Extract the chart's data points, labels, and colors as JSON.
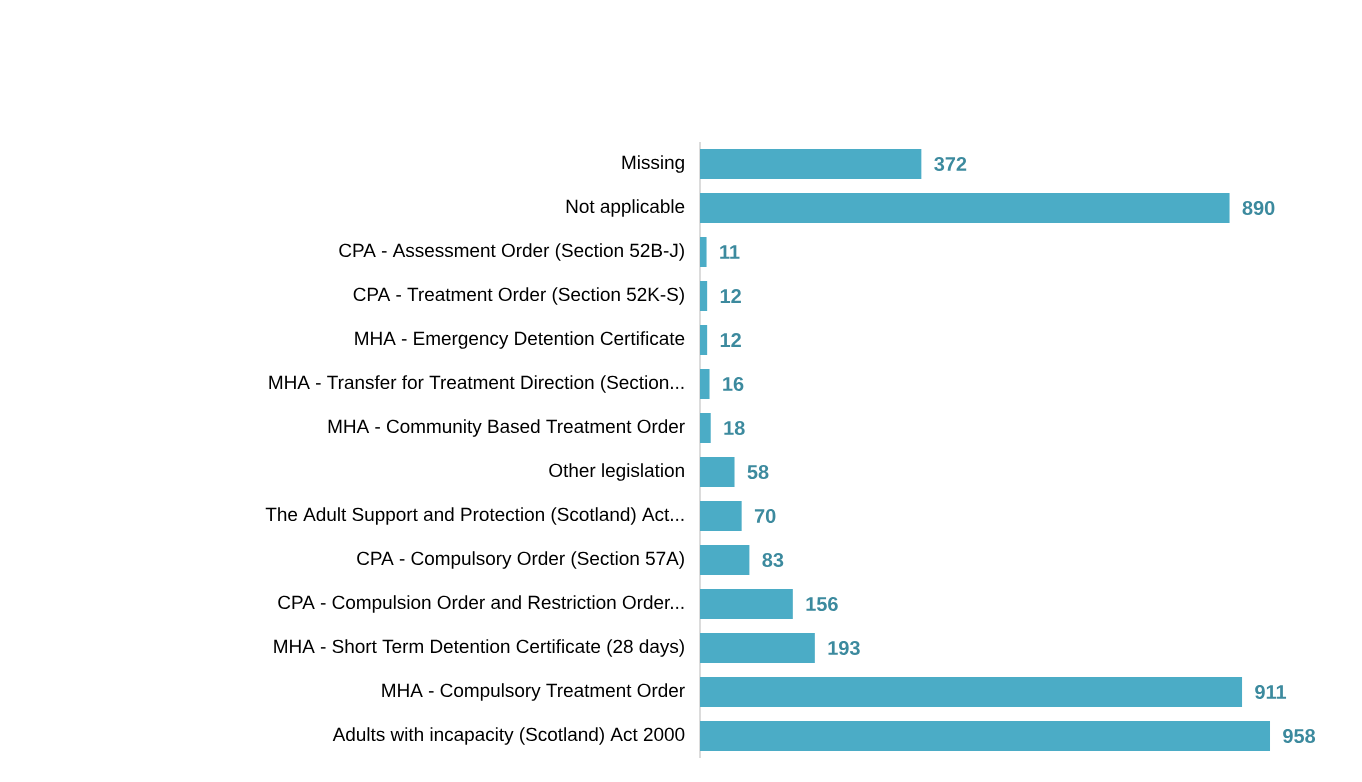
{
  "chart_data": {
    "type": "bar",
    "orientation": "horizontal",
    "data_labels": true,
    "color": "#4bacc6",
    "categories": [
      "Missing",
      "Not applicable",
      "CPA - Assessment Order (Section 52B-J)",
      "CPA - Treatment Order (Section 52K-S)",
      "MHA - Emergency Detention Certificate",
      "MHA - Transfer for Treatment Direction (Section...",
      "MHA - Community Based Treatment Order",
      "Other legislation",
      "The Adult Support and Protection (Scotland) Act...",
      "CPA - Compulsory Order (Section 57A)",
      "CPA - Compulsion Order and Restriction Order...",
      "MHA - Short Term Detention Certificate (28 days)",
      "MHA - Compulsory Treatment Order",
      "Adults with incapacity (Scotland) Act 2000"
    ],
    "values": [
      372,
      890,
      11,
      12,
      12,
      16,
      18,
      58,
      70,
      83,
      156,
      193,
      911,
      958
    ]
  }
}
